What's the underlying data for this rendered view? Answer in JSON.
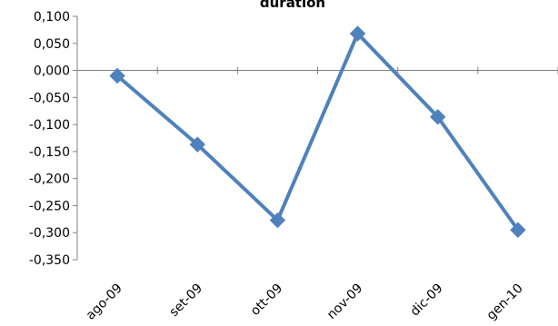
{
  "chart_data": {
    "type": "line",
    "title": "duration",
    "xlabel": "",
    "ylabel": "",
    "categories": [
      "ago-09",
      "set-09",
      "ott-09",
      "nov-09",
      "dic-09",
      "gen-10"
    ],
    "series": [
      {
        "values": [
          -0.01,
          -0.137,
          -0.277,
          0.068,
          -0.086,
          -0.295
        ],
        "color": "#4F81BD",
        "marker": "diamond"
      }
    ],
    "ylim": [
      -0.35,
      0.1
    ],
    "yticks": [
      "0,100",
      "0,050",
      "0,000",
      "-0,050",
      "-0,100",
      "-0,150",
      "-0,200",
      "-0,250",
      "-0,300",
      "-0,350"
    ],
    "grid": false,
    "legend": "none"
  }
}
